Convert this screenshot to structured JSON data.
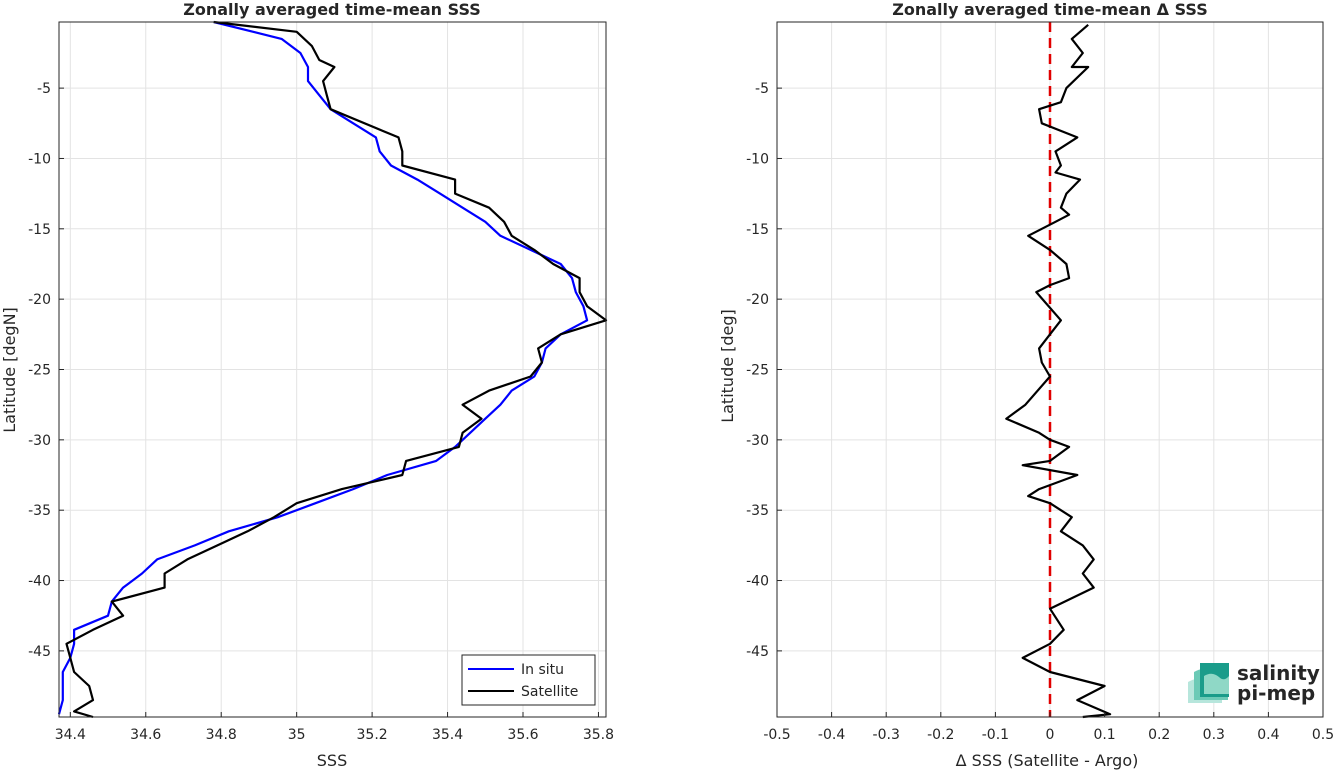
{
  "chart_data": [
    {
      "type": "line",
      "title": "Zonally averaged time-mean SSS",
      "xlabel": "SSS",
      "ylabel": "Latitude [degN]",
      "xlim": [
        34.37,
        35.82
      ],
      "ylim": [
        -49.7,
        -0.3
      ],
      "xticks": [
        34.4,
        34.6,
        34.8,
        35,
        35.2,
        35.4,
        35.6,
        35.8
      ],
      "xtick_labels": [
        "34.4",
        "34.6",
        "34.8",
        "35",
        "35.2",
        "35.4",
        "35.6",
        "35.8"
      ],
      "yticks": [
        -5,
        -10,
        -15,
        -20,
        -25,
        -30,
        -35,
        -40,
        -45
      ],
      "ytick_labels": [
        "-5",
        "-10",
        "-15",
        "-20",
        "-25",
        "-30",
        "-35",
        "-40",
        "-45"
      ],
      "grid": true,
      "legend": "bottom-right",
      "series": [
        {
          "name": "In situ",
          "color": "#0000ff",
          "points": [
            [
              34.78,
              -0.3
            ],
            [
              34.96,
              -1.5
            ],
            [
              35.01,
              -2.5
            ],
            [
              35.03,
              -3.5
            ],
            [
              35.03,
              -4.5
            ],
            [
              35.06,
              -5.5
            ],
            [
              35.09,
              -6.5
            ],
            [
              35.15,
              -7.5
            ],
            [
              35.21,
              -8.5
            ],
            [
              35.22,
              -9.5
            ],
            [
              35.25,
              -10.5
            ],
            [
              35.32,
              -11.5
            ],
            [
              35.38,
              -12.5
            ],
            [
              35.44,
              -13.5
            ],
            [
              35.5,
              -14.5
            ],
            [
              35.54,
              -15.5
            ],
            [
              35.62,
              -16.5
            ],
            [
              35.7,
              -17.5
            ],
            [
              35.73,
              -18.5
            ],
            [
              35.74,
              -19.5
            ],
            [
              35.76,
              -20.5
            ],
            [
              35.77,
              -21.5
            ],
            [
              35.7,
              -22.5
            ],
            [
              35.66,
              -23.5
            ],
            [
              35.65,
              -24.5
            ],
            [
              35.63,
              -25.5
            ],
            [
              35.57,
              -26.5
            ],
            [
              35.54,
              -27.5
            ],
            [
              35.5,
              -28.5
            ],
            [
              35.46,
              -29.5
            ],
            [
              35.42,
              -30.5
            ],
            [
              35.37,
              -31.5
            ],
            [
              35.24,
              -32.5
            ],
            [
              35.15,
              -33.5
            ],
            [
              35.05,
              -34.5
            ],
            [
              34.95,
              -35.5
            ],
            [
              34.82,
              -36.5
            ],
            [
              34.73,
              -37.5
            ],
            [
              34.63,
              -38.5
            ],
            [
              34.59,
              -39.5
            ],
            [
              34.54,
              -40.5
            ],
            [
              34.51,
              -41.5
            ],
            [
              34.5,
              -42.5
            ],
            [
              34.41,
              -43.5
            ],
            [
              34.41,
              -44.5
            ],
            [
              34.4,
              -45.5
            ],
            [
              34.38,
              -46.5
            ],
            [
              34.38,
              -47.5
            ],
            [
              34.38,
              -48.5
            ],
            [
              34.37,
              -49.5
            ]
          ]
        },
        {
          "name": "Satellite",
          "color": "#000000",
          "points": [
            [
              34.78,
              -0.3
            ],
            [
              35.0,
              -1.0
            ],
            [
              35.04,
              -2.0
            ],
            [
              35.06,
              -3.0
            ],
            [
              35.1,
              -3.5
            ],
            [
              35.07,
              -4.5
            ],
            [
              35.08,
              -5.5
            ],
            [
              35.09,
              -6.5
            ],
            [
              35.27,
              -8.5
            ],
            [
              35.28,
              -9.5
            ],
            [
              35.28,
              -10.5
            ],
            [
              35.42,
              -11.5
            ],
            [
              35.42,
              -12.5
            ],
            [
              35.51,
              -13.5
            ],
            [
              35.55,
              -14.5
            ],
            [
              35.57,
              -15.5
            ],
            [
              35.63,
              -16.5
            ],
            [
              35.68,
              -17.5
            ],
            [
              35.75,
              -18.5
            ],
            [
              35.75,
              -19.5
            ],
            [
              35.77,
              -20.5
            ],
            [
              35.82,
              -21.5
            ],
            [
              35.7,
              -22.5
            ],
            [
              35.64,
              -23.5
            ],
            [
              35.65,
              -24.5
            ],
            [
              35.62,
              -25.5
            ],
            [
              35.51,
              -26.5
            ],
            [
              35.44,
              -27.5
            ],
            [
              35.49,
              -28.5
            ],
            [
              35.44,
              -29.5
            ],
            [
              35.43,
              -30.5
            ],
            [
              35.29,
              -31.5
            ],
            [
              35.28,
              -32.5
            ],
            [
              35.12,
              -33.5
            ],
            [
              35.0,
              -34.5
            ],
            [
              34.94,
              -35.5
            ],
            [
              34.87,
              -36.5
            ],
            [
              34.79,
              -37.5
            ],
            [
              34.71,
              -38.5
            ],
            [
              34.65,
              -39.5
            ],
            [
              34.65,
              -40.5
            ],
            [
              34.51,
              -41.5
            ],
            [
              34.54,
              -42.5
            ],
            [
              34.46,
              -43.5
            ],
            [
              34.39,
              -44.5
            ],
            [
              34.4,
              -45.5
            ],
            [
              34.41,
              -46.5
            ],
            [
              34.45,
              -47.5
            ],
            [
              34.46,
              -48.5
            ],
            [
              34.41,
              -49.3
            ],
            [
              34.46,
              -49.7
            ]
          ]
        }
      ]
    },
    {
      "type": "line",
      "title": "Zonally averaged time-mean Δ SSS",
      "xlabel": "Δ SSS (Satellite - Argo)",
      "ylabel": "Latitude [deg]",
      "xlim": [
        -0.5,
        0.5
      ],
      "ylim": [
        -49.7,
        -0.3
      ],
      "xticks": [
        -0.5,
        -0.4,
        -0.3,
        -0.2,
        -0.1,
        0,
        0.1,
        0.2,
        0.3,
        0.4,
        0.5
      ],
      "xtick_labels": [
        "-0.5",
        "-0.4",
        "-0.3",
        "-0.2",
        "-0.1",
        "0",
        "0.1",
        "0.2",
        "0.3",
        "0.4",
        "0.5"
      ],
      "yticks": [
        -5,
        -10,
        -15,
        -20,
        -25,
        -30,
        -35,
        -40,
        -45
      ],
      "ytick_labels": [
        "-5",
        "-10",
        "-15",
        "-20",
        "-25",
        "-30",
        "-35",
        "-40",
        "-45"
      ],
      "grid": true,
      "reference_line": {
        "x": 0,
        "color": "#e00000",
        "style": "dashed"
      },
      "series": [
        {
          "name": "",
          "color": "#000000",
          "points": [
            [
              0.07,
              -0.5
            ],
            [
              0.04,
              -1.5
            ],
            [
              0.06,
              -2.5
            ],
            [
              0.04,
              -3.5
            ],
            [
              0.07,
              -3.5
            ],
            [
              0.03,
              -5.0
            ],
            [
              0.02,
              -6.0
            ],
            [
              -0.02,
              -6.5
            ],
            [
              -0.015,
              -7.5
            ],
            [
              0.05,
              -8.5
            ],
            [
              0.01,
              -9.5
            ],
            [
              0.02,
              -10.5
            ],
            [
              0.01,
              -11.0
            ],
            [
              0.055,
              -11.5
            ],
            [
              0.03,
              -12.5
            ],
            [
              0.02,
              -13.5
            ],
            [
              0.035,
              -14.0
            ],
            [
              0.01,
              -14.5
            ],
            [
              -0.04,
              -15.5
            ],
            [
              0.0,
              -16.5
            ],
            [
              0.03,
              -17.5
            ],
            [
              0.035,
              -18.5
            ],
            [
              0.0,
              -19.0
            ],
            [
              -0.025,
              -19.5
            ],
            [
              0.02,
              -21.5
            ],
            [
              0.0,
              -22.5
            ],
            [
              -0.02,
              -23.5
            ],
            [
              -0.015,
              -24.5
            ],
            [
              0.0,
              -25.5
            ],
            [
              -0.045,
              -27.5
            ],
            [
              -0.08,
              -28.5
            ],
            [
              -0.02,
              -29.5
            ],
            [
              0.0,
              -30.0
            ],
            [
              0.035,
              -30.5
            ],
            [
              0.0,
              -31.5
            ],
            [
              -0.05,
              -31.8
            ],
            [
              0.05,
              -32.5
            ],
            [
              -0.02,
              -33.5
            ],
            [
              -0.04,
              -34.0
            ],
            [
              0.0,
              -34.5
            ],
            [
              0.04,
              -35.5
            ],
            [
              0.02,
              -36.5
            ],
            [
              0.06,
              -37.5
            ],
            [
              0.08,
              -38.5
            ],
            [
              0.06,
              -39.5
            ],
            [
              0.08,
              -40.5
            ],
            [
              0.0,
              -42.0
            ],
            [
              0.025,
              -43.5
            ],
            [
              0.0,
              -44.5
            ],
            [
              -0.05,
              -45.5
            ],
            [
              0.0,
              -46.5
            ],
            [
              0.1,
              -47.5
            ],
            [
              0.05,
              -48.5
            ],
            [
              0.11,
              -49.5
            ],
            [
              0.06,
              -49.7
            ]
          ]
        }
      ]
    }
  ],
  "logo": {
    "line1": "salinity",
    "line2": "pi-mep",
    "color": "#1a9c8a"
  }
}
